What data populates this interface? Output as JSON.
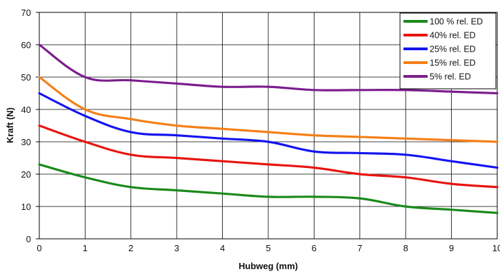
{
  "chart_data": {
    "type": "line",
    "xlabel": "Hubweg (mm)",
    "ylabel": "Kraft (N)",
    "xlim": [
      0,
      10
    ],
    "ylim": [
      0,
      70
    ],
    "xticks": [
      "0",
      "1",
      "2",
      "3",
      "4",
      "5",
      "6",
      "7",
      "8",
      "9",
      "10"
    ],
    "yticks": [
      "0",
      "10",
      "20",
      "30",
      "40",
      "50",
      "60",
      "70"
    ],
    "grid": true,
    "legend_position": "top-right",
    "x": [
      0,
      1,
      2,
      3,
      4,
      5,
      6,
      7,
      8,
      9,
      10
    ],
    "series": [
      {
        "name": "100 % rel. ED",
        "color": "#1a8a1a",
        "values": [
          23,
          19,
          16,
          15,
          14,
          13,
          13,
          12.5,
          10,
          9,
          8
        ]
      },
      {
        "name": "40% rel. ED",
        "color": "#e8140f",
        "values": [
          35,
          30,
          26,
          25,
          24,
          23,
          22,
          20,
          19,
          17,
          16
        ]
      },
      {
        "name": "25% rel. ED",
        "color": "#1414f0",
        "values": [
          45,
          38,
          33,
          32,
          31,
          30,
          27,
          26.5,
          26,
          24,
          22
        ]
      },
      {
        "name": "15% rel. ED",
        "color": "#f57f17",
        "values": [
          50,
          40,
          37,
          35,
          34,
          33,
          32,
          31.5,
          31,
          30.5,
          30
        ]
      },
      {
        "name": "5% rel. ED",
        "color": "#7b1e8c",
        "values": [
          60,
          50,
          49,
          48,
          47,
          47,
          46,
          46,
          46,
          45.5,
          45
        ]
      }
    ]
  }
}
